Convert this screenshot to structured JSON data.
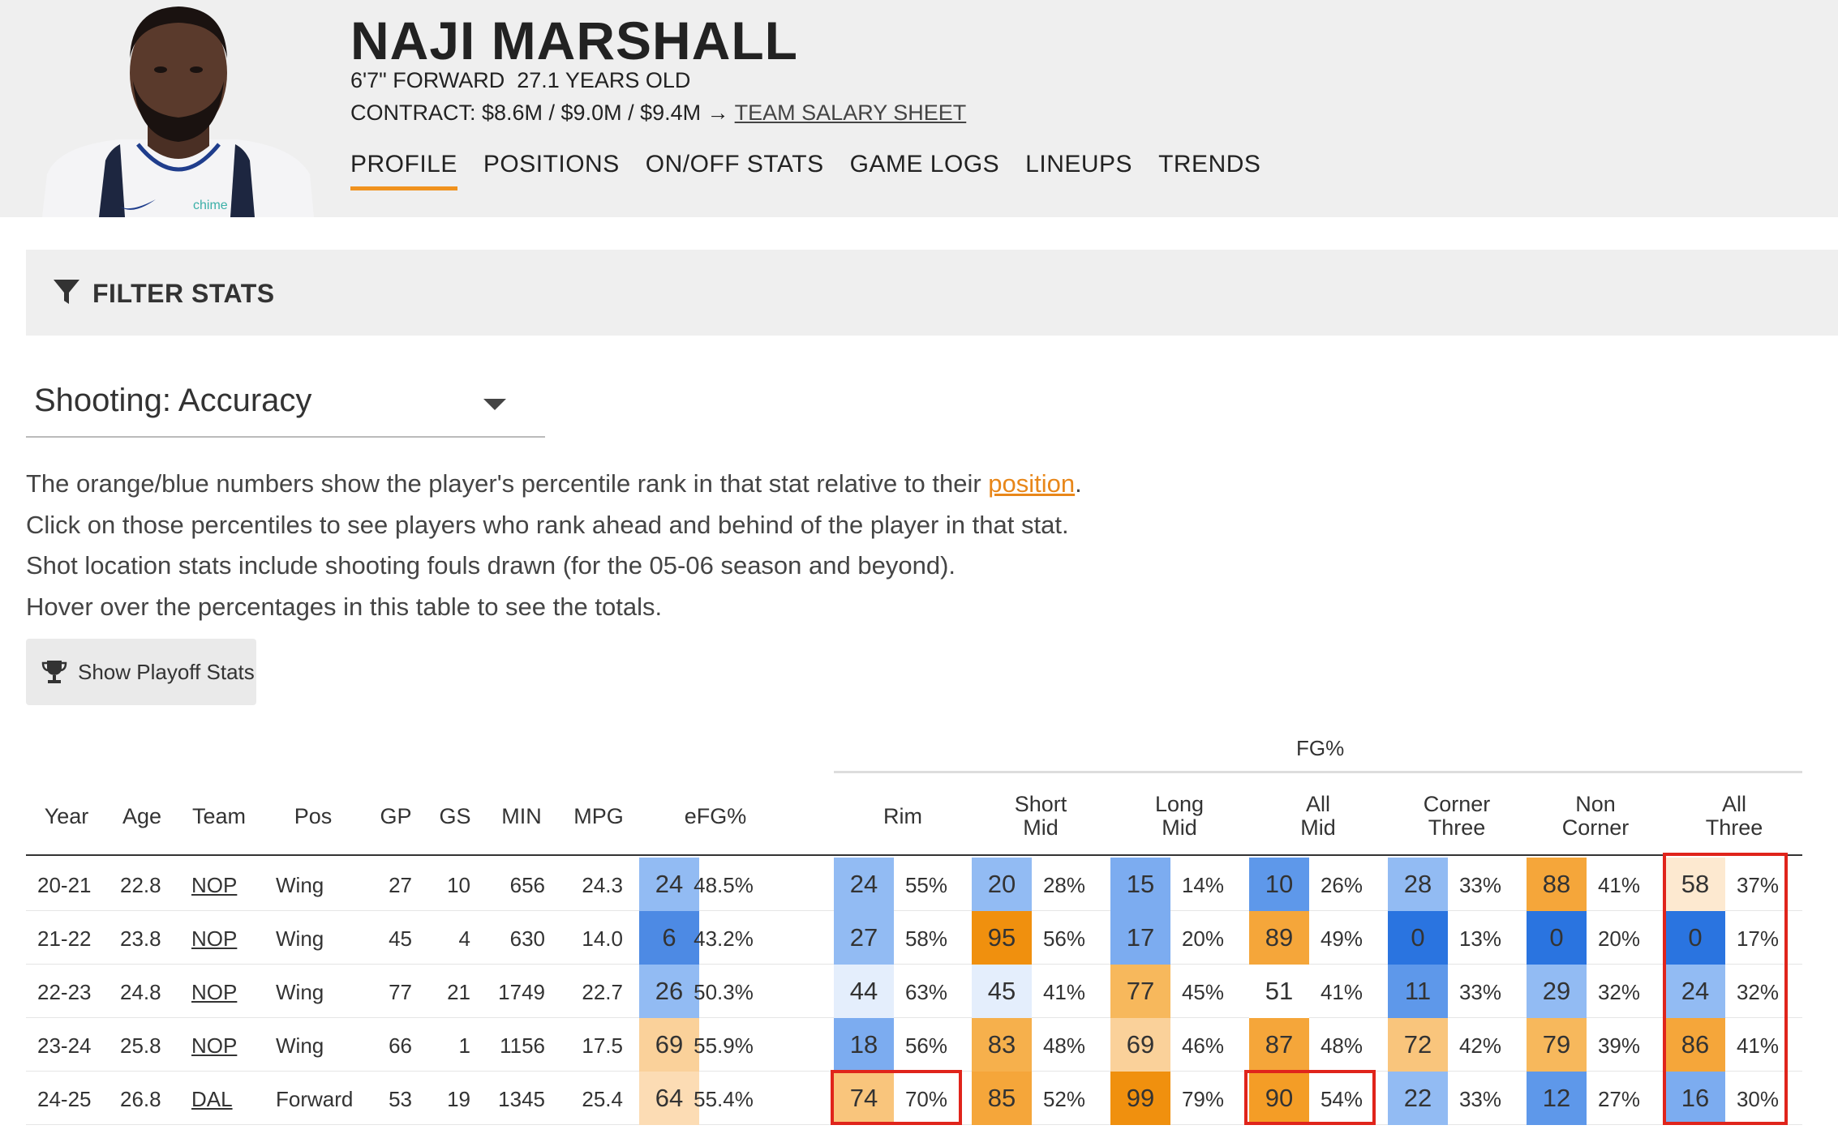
{
  "player": {
    "name": "NAJI MARSHALL",
    "bio": "6'7\" FORWARD  27.1 YEARS OLD",
    "contract_prefix": "CONTRACT: $8.6M / $9.0M / $9.4M → ",
    "salary_link": "TEAM SALARY SHEET",
    "jersey_text": "chime"
  },
  "nav": [
    {
      "label": "PROFILE",
      "active": true
    },
    {
      "label": "POSITIONS"
    },
    {
      "label": "ON/OFF STATS"
    },
    {
      "label": "GAME LOGS"
    },
    {
      "label": "LINEUPS"
    },
    {
      "label": "TRENDS"
    }
  ],
  "filter": {
    "label": "FILTER STATS"
  },
  "stat_select": {
    "value": "Shooting: Accuracy"
  },
  "description": {
    "line1_a": "The orange/blue numbers show the player's percentile rank in that stat relative to their ",
    "line1_link": "position",
    "line1_b": ".",
    "line2": "Click on those percentiles to see players who rank ahead and behind of the player in that stat.",
    "line3": "Shot location stats include shooting fouls drawn (for the 05-06 season and beyond).",
    "line4": "Hover over the percentages in this table to see the totals."
  },
  "playoff_button": {
    "label": "Show Playoff Stats"
  },
  "table": {
    "group_header": "FG%",
    "headers": {
      "year": "Year",
      "age": "Age",
      "team": "Team",
      "pos": "Pos",
      "gp": "GP",
      "gs": "GS",
      "min": "MIN",
      "mpg": "MPG",
      "efg": "eFG%",
      "rim": "Rim",
      "short_mid_1": "Short",
      "short_mid_2": "Mid",
      "long_mid_1": "Long",
      "long_mid_2": "Mid",
      "all_mid_1": "All",
      "all_mid_2": "Mid",
      "corner_1": "Corner",
      "corner_2": "Three",
      "noncorner_1": "Non",
      "noncorner_2": "Corner",
      "allthree_1": "All",
      "allthree_2": "Three"
    },
    "rows": [
      {
        "year": "20-21",
        "age": "22.8",
        "team": "NOP",
        "pos": "Wing",
        "gp": "27",
        "gs": "10",
        "min": "656",
        "mpg": "24.3",
        "efg": [
          "24",
          "48.5%"
        ],
        "rim": [
          "24",
          "55%"
        ],
        "short_mid": [
          "20",
          "28%"
        ],
        "long_mid": [
          "15",
          "14%"
        ],
        "all_mid": [
          "10",
          "26%"
        ],
        "corner": [
          "28",
          "33%"
        ],
        "noncorner": [
          "88",
          "41%"
        ],
        "all_three": [
          "58",
          "37%"
        ]
      },
      {
        "year": "21-22",
        "age": "23.8",
        "team": "NOP",
        "pos": "Wing",
        "gp": "45",
        "gs": "4",
        "min": "630",
        "mpg": "14.0",
        "efg": [
          "6",
          "43.2%"
        ],
        "rim": [
          "27",
          "58%"
        ],
        "short_mid": [
          "95",
          "56%"
        ],
        "long_mid": [
          "17",
          "20%"
        ],
        "all_mid": [
          "89",
          "49%"
        ],
        "corner": [
          "0",
          "13%"
        ],
        "noncorner": [
          "0",
          "20%"
        ],
        "all_three": [
          "0",
          "17%"
        ]
      },
      {
        "year": "22-23",
        "age": "24.8",
        "team": "NOP",
        "pos": "Wing",
        "gp": "77",
        "gs": "21",
        "min": "1749",
        "mpg": "22.7",
        "efg": [
          "26",
          "50.3%"
        ],
        "rim": [
          "44",
          "63%"
        ],
        "short_mid": [
          "45",
          "41%"
        ],
        "long_mid": [
          "77",
          "45%"
        ],
        "all_mid": [
          "51",
          "41%"
        ],
        "corner": [
          "11",
          "33%"
        ],
        "noncorner": [
          "29",
          "32%"
        ],
        "all_three": [
          "24",
          "32%"
        ]
      },
      {
        "year": "23-24",
        "age": "25.8",
        "team": "NOP",
        "pos": "Wing",
        "gp": "66",
        "gs": "1",
        "min": "1156",
        "mpg": "17.5",
        "efg": [
          "69",
          "55.9%"
        ],
        "rim": [
          "18",
          "56%"
        ],
        "short_mid": [
          "83",
          "48%"
        ],
        "long_mid": [
          "69",
          "46%"
        ],
        "all_mid": [
          "87",
          "48%"
        ],
        "corner": [
          "72",
          "42%"
        ],
        "noncorner": [
          "79",
          "39%"
        ],
        "all_three": [
          "86",
          "41%"
        ]
      },
      {
        "year": "24-25",
        "age": "26.8",
        "team": "DAL",
        "pos": "Forward",
        "gp": "53",
        "gs": "19",
        "min": "1345",
        "mpg": "25.4",
        "efg": [
          "64",
          "55.4%"
        ],
        "rim": [
          "74",
          "70%"
        ],
        "short_mid": [
          "85",
          "52%"
        ],
        "long_mid": [
          "99",
          "79%"
        ],
        "all_mid": [
          "90",
          "54%"
        ],
        "corner": [
          "22",
          "33%"
        ],
        "noncorner": [
          "12",
          "27%"
        ],
        "all_three": [
          "16",
          "30%"
        ]
      }
    ]
  }
}
